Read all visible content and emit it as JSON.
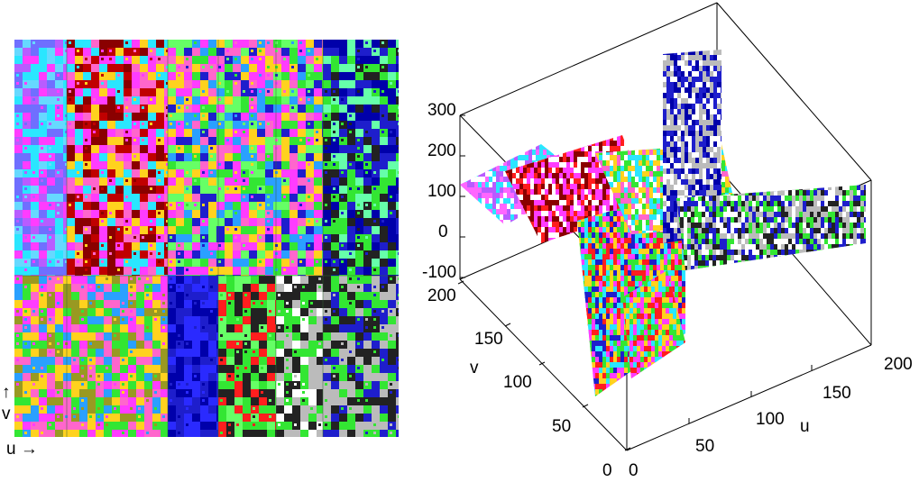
{
  "left_panel": {
    "v_axis_label": "↑\nv",
    "u_axis_label": "u →"
  },
  "right_panel": {
    "z_ticks": [
      "300",
      "200",
      "100",
      "0",
      "-100"
    ],
    "v_ticks": [
      "200",
      "150",
      "100",
      "50",
      "0"
    ],
    "u_ticks": [
      "0",
      "50",
      "100",
      "150",
      "200"
    ],
    "v_label": "v",
    "u_label": "u"
  },
  "palette": [
    "#ff3cff",
    "#2ae6ff",
    "#ffd21e",
    "#ff1e1e",
    "#1e1ecc",
    "#33e633",
    "#8a0000",
    "#ff66cc",
    "#bbbbbb",
    "#222222",
    "#ffffff",
    "#66ffaa"
  ]
}
